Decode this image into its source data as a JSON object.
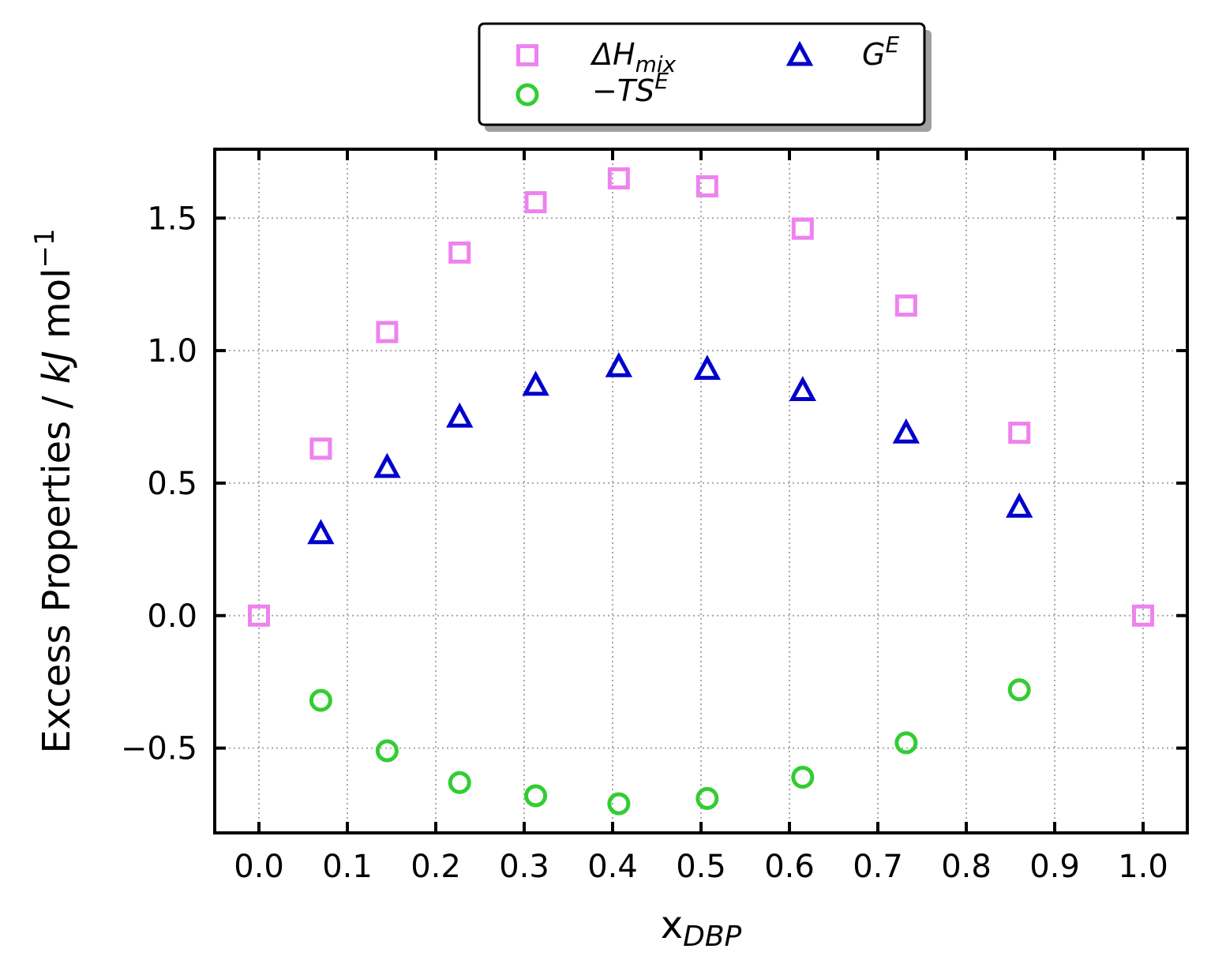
{
  "chart_data": {
    "type": "scatter",
    "xlabel": {
      "main": "x",
      "sub": "DBP"
    },
    "ylabel": {
      "prefix": "Excess Properties / ",
      "italic": "kJ",
      "suffix": " mol",
      "sup": "−1"
    },
    "xlim": [
      -0.05,
      1.05
    ],
    "ylim": [
      -0.82,
      1.76
    ],
    "xticks": [
      0.0,
      0.1,
      0.2,
      0.3,
      0.4,
      0.5,
      0.6,
      0.7,
      0.8,
      0.9,
      1.0
    ],
    "xtick_labels": [
      "0.0",
      "0.1",
      "0.2",
      "0.3",
      "0.4",
      "0.5",
      "0.6",
      "0.7",
      "0.8",
      "0.9",
      "1.0"
    ],
    "yticks": [
      -0.5,
      0.0,
      0.5,
      1.0,
      1.5
    ],
    "ytick_labels": [
      "−0.5",
      "0.0",
      "0.5",
      "1.0",
      "1.5"
    ],
    "grid": true,
    "legend_position": "top-center, outside plot",
    "series": [
      {
        "name": "ΔHmix",
        "label_parts": {
          "main": "ΔH",
          "sub": "mix"
        },
        "marker": "square",
        "color": "#ee82ee",
        "x": [
          0.0,
          0.07,
          0.145,
          0.227,
          0.313,
          0.407,
          0.507,
          0.615,
          0.732,
          0.86,
          1.0
        ],
        "y": [
          0.0,
          0.63,
          1.07,
          1.37,
          1.56,
          1.65,
          1.62,
          1.46,
          1.17,
          0.69,
          0.0
        ]
      },
      {
        "name": "−TSE",
        "label_parts": {
          "main": "−TS",
          "sup": "E"
        },
        "marker": "circle",
        "color": "#32cd32",
        "x": [
          0.07,
          0.145,
          0.227,
          0.313,
          0.407,
          0.507,
          0.615,
          0.732,
          0.86
        ],
        "y": [
          -0.32,
          -0.51,
          -0.63,
          -0.68,
          -0.71,
          -0.69,
          -0.61,
          -0.48,
          -0.28
        ]
      },
      {
        "name": "GE",
        "label_parts": {
          "main": "G",
          "sup": "E"
        },
        "marker": "triangle",
        "color": "#0000cd",
        "x": [
          0.07,
          0.145,
          0.227,
          0.313,
          0.407,
          0.507,
          0.615,
          0.732,
          0.86
        ],
        "y": [
          0.31,
          0.56,
          0.75,
          0.87,
          0.94,
          0.93,
          0.85,
          0.69,
          0.41
        ]
      }
    ]
  }
}
